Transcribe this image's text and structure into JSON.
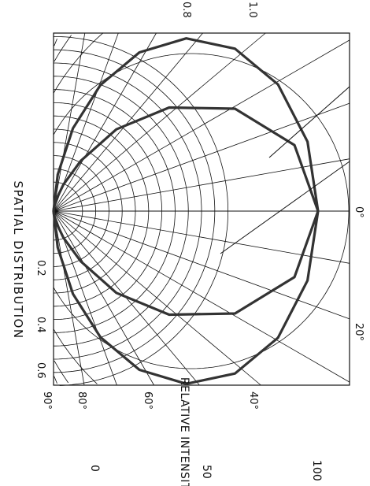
{
  "chart_data": {
    "type": "polar-line",
    "title": "SPATIAL DISTRIBUTION",
    "xlabel": "RELATIVE INTENSITY",
    "angle_ticks": [
      "0°",
      "20°",
      "40°",
      "60°",
      "80°",
      "90°"
    ],
    "radial_ticks": [
      "0.2",
      "0.4",
      "0.6",
      "0.8",
      "1.0"
    ],
    "intensity_ticks": [
      "0",
      "50",
      "100"
    ],
    "angles_deg": [
      0,
      10,
      20,
      30,
      40,
      50,
      60,
      70,
      80,
      90
    ],
    "series": [
      {
        "values": [
          1.0,
          0.975,
          0.903,
          0.792,
          0.655,
          0.505,
          0.355,
          0.215,
          0.09,
          0.0
        ]
      },
      {
        "values": [
          1.0,
          0.925,
          0.73,
          0.505,
          0.31,
          0.16,
          0.075,
          0.03,
          0.008,
          0.0
        ]
      }
    ],
    "grid": true,
    "colors": {
      "grid": "#111111",
      "series": "#333333"
    }
  }
}
